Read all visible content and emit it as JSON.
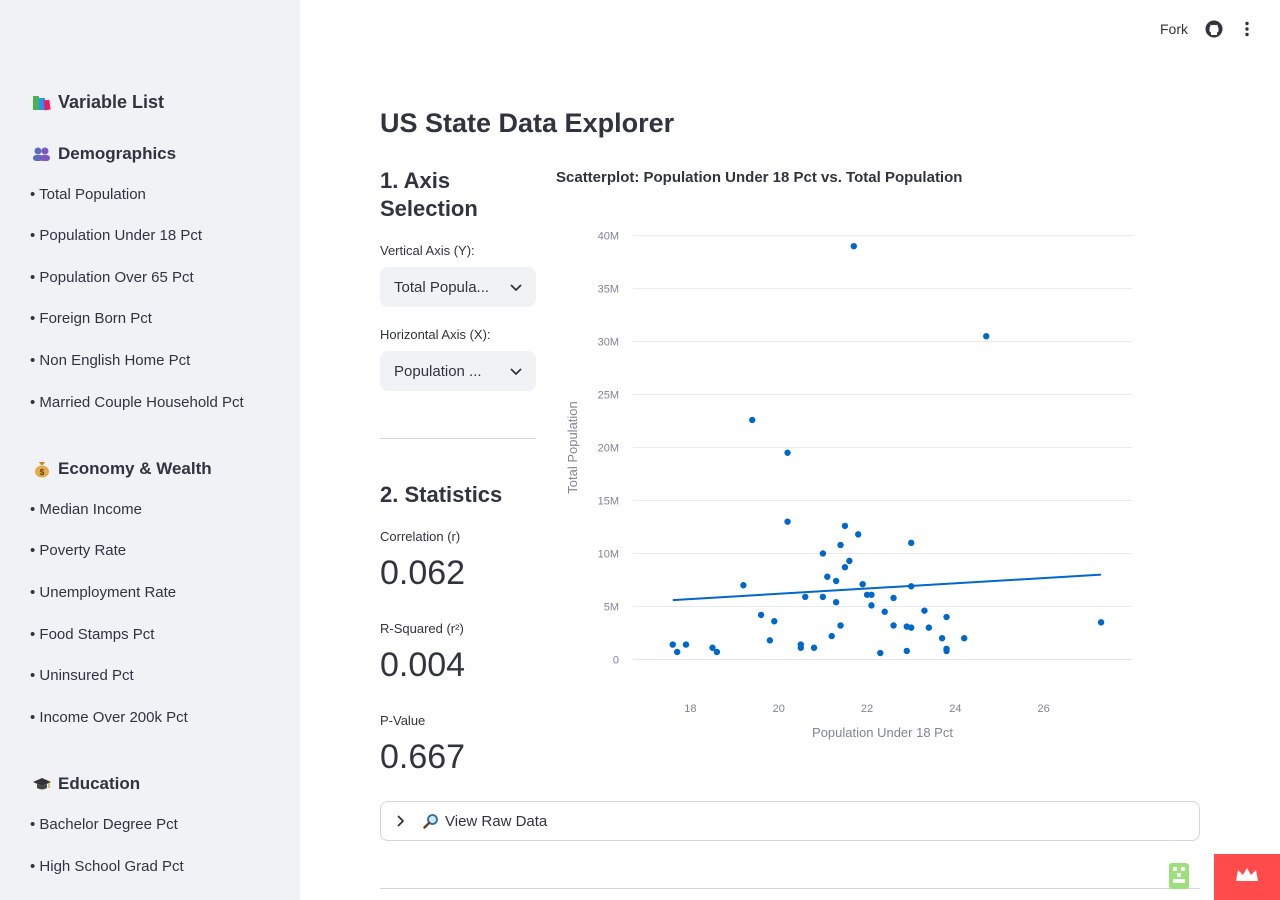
{
  "sidebar": {
    "title": "Variable List",
    "sections": [
      {
        "title": "Demographics",
        "icon": "people-icon",
        "items": [
          "• Total Population",
          "• Population Under 18 Pct",
          "• Population Over 65 Pct",
          "• Foreign Born Pct",
          "• Non English Home Pct",
          "• Married Couple Household Pct"
        ]
      },
      {
        "title": "Economy & Wealth",
        "icon": "money-bag-icon",
        "items": [
          "• Median Income",
          "• Poverty Rate",
          "• Unemployment Rate",
          "• Food Stamps Pct",
          "• Uninsured Pct",
          "• Income Over 200k Pct"
        ]
      },
      {
        "title": "Education",
        "icon": "graduation-cap-icon",
        "items": [
          "• Bachelor Degree Pct",
          "• High School Grad Pct"
        ]
      }
    ]
  },
  "toolbar": {
    "fork_label": "Fork"
  },
  "main": {
    "title": "US State Data Explorer",
    "axis_section_title": "1. Axis Selection",
    "y_label": "Vertical Axis (Y):",
    "y_value": "Total Popula...",
    "x_label": "Horizontal Axis (X):",
    "x_value": "Population ...",
    "stats_title": "2. Statistics",
    "corr_label": "Correlation (r)",
    "corr_value": "0.062",
    "r2_label": "R-Squared (r²)",
    "r2_value": "0.004",
    "p_label": "P-Value",
    "p_value": "0.667",
    "expander_label": "View Raw Data"
  },
  "colors": {
    "accent": "#0068c9",
    "sidebar_bg": "#f0f2f6",
    "badge": "#ff4b4b"
  },
  "chart_data": {
    "type": "scatter",
    "title": "Scatterplot: Population Under 18 Pct vs. Total Population",
    "xlabel": "Population Under 18 Pct",
    "ylabel": "Total Population",
    "xlim": [
      16.7,
      28.0
    ],
    "ylim": [
      -1.0,
      41.0
    ],
    "x_ticks": [
      18,
      20,
      22,
      24,
      26
    ],
    "y_ticks": [
      0,
      5,
      10,
      15,
      20,
      25,
      30,
      35,
      40
    ],
    "y_tick_labels": [
      "0",
      "5M",
      "10M",
      "15M",
      "20M",
      "25M",
      "30M",
      "35M",
      "40M"
    ],
    "grid": true,
    "points": [
      {
        "x": 21.7,
        "y": 39.0
      },
      {
        "x": 24.7,
        "y": 30.5
      },
      {
        "x": 19.4,
        "y": 22.6
      },
      {
        "x": 20.2,
        "y": 19.5
      },
      {
        "x": 20.2,
        "y": 13.0
      },
      {
        "x": 21.5,
        "y": 12.6
      },
      {
        "x": 21.8,
        "y": 11.8
      },
      {
        "x": 23.0,
        "y": 11.0
      },
      {
        "x": 21.4,
        "y": 10.8
      },
      {
        "x": 21.0,
        "y": 10.0
      },
      {
        "x": 21.6,
        "y": 9.3
      },
      {
        "x": 21.5,
        "y": 8.7
      },
      {
        "x": 21.1,
        "y": 7.8
      },
      {
        "x": 21.3,
        "y": 7.4
      },
      {
        "x": 21.9,
        "y": 7.1
      },
      {
        "x": 19.2,
        "y": 7.0
      },
      {
        "x": 23.0,
        "y": 6.9
      },
      {
        "x": 22.0,
        "y": 6.1
      },
      {
        "x": 22.1,
        "y": 6.1
      },
      {
        "x": 20.6,
        "y": 5.9
      },
      {
        "x": 21.0,
        "y": 5.9
      },
      {
        "x": 22.6,
        "y": 5.8
      },
      {
        "x": 21.3,
        "y": 5.4
      },
      {
        "x": 22.1,
        "y": 5.1
      },
      {
        "x": 23.3,
        "y": 4.6
      },
      {
        "x": 22.4,
        "y": 4.5
      },
      {
        "x": 19.6,
        "y": 4.2
      },
      {
        "x": 23.8,
        "y": 4.0
      },
      {
        "x": 19.9,
        "y": 3.6
      },
      {
        "x": 27.3,
        "y": 3.5
      },
      {
        "x": 21.4,
        "y": 3.2
      },
      {
        "x": 22.6,
        "y": 3.2
      },
      {
        "x": 22.9,
        "y": 3.1
      },
      {
        "x": 23.0,
        "y": 3.0
      },
      {
        "x": 23.4,
        "y": 3.0
      },
      {
        "x": 21.2,
        "y": 2.2
      },
      {
        "x": 23.7,
        "y": 2.0
      },
      {
        "x": 24.2,
        "y": 2.0
      },
      {
        "x": 19.8,
        "y": 1.8
      },
      {
        "x": 17.6,
        "y": 1.4
      },
      {
        "x": 17.9,
        "y": 1.4
      },
      {
        "x": 20.5,
        "y": 1.4
      },
      {
        "x": 18.5,
        "y": 1.1
      },
      {
        "x": 20.5,
        "y": 1.1
      },
      {
        "x": 20.8,
        "y": 1.1
      },
      {
        "x": 23.8,
        "y": 1.0
      },
      {
        "x": 17.7,
        "y": 0.7
      },
      {
        "x": 18.6,
        "y": 0.7
      },
      {
        "x": 22.9,
        "y": 0.8
      },
      {
        "x": 23.8,
        "y": 0.8
      },
      {
        "x": 22.3,
        "y": 0.6
      }
    ],
    "trendline": {
      "x": [
        17.6,
        27.3
      ],
      "y": [
        5.6,
        8.0
      ]
    }
  }
}
